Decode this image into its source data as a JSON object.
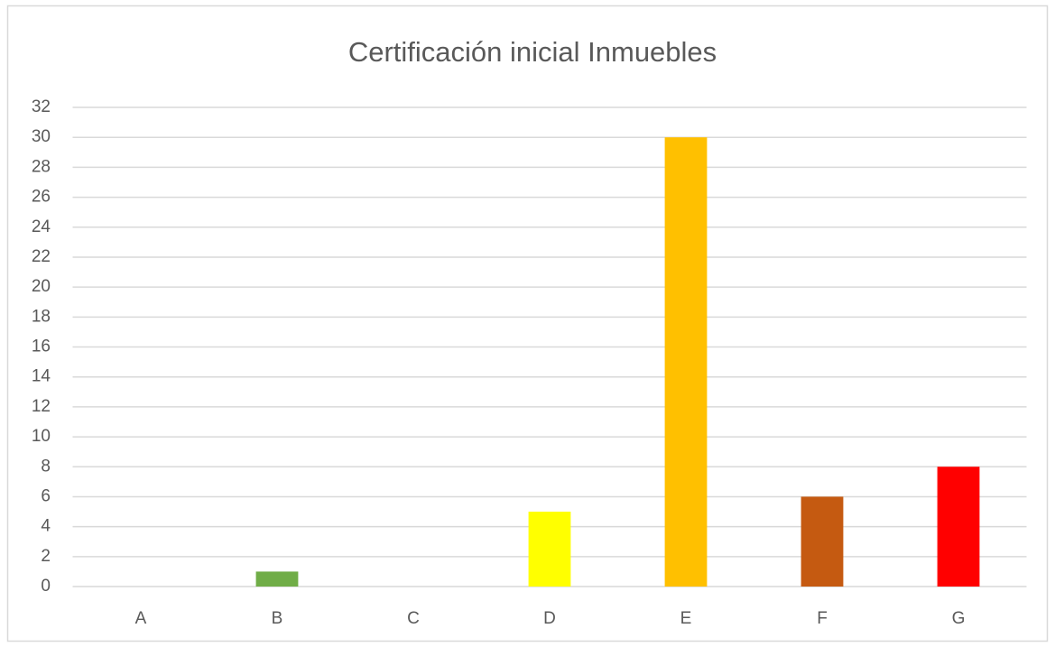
{
  "chart_data": {
    "type": "bar",
    "title": "Certificación inicial Inmuebles",
    "categories": [
      "A",
      "B",
      "C",
      "D",
      "E",
      "F",
      "G"
    ],
    "values": [
      0,
      1,
      0,
      5,
      30,
      6,
      8
    ],
    "colors": [
      "#00b050",
      "#70ad47",
      "#92d050",
      "#ffff00",
      "#ffc000",
      "#c55a11",
      "#ff0000"
    ],
    "ylim": [
      0,
      32
    ],
    "yticks": [
      0,
      2,
      4,
      6,
      8,
      10,
      12,
      14,
      16,
      18,
      20,
      22,
      24,
      26,
      28,
      30,
      32
    ],
    "grid": true
  }
}
